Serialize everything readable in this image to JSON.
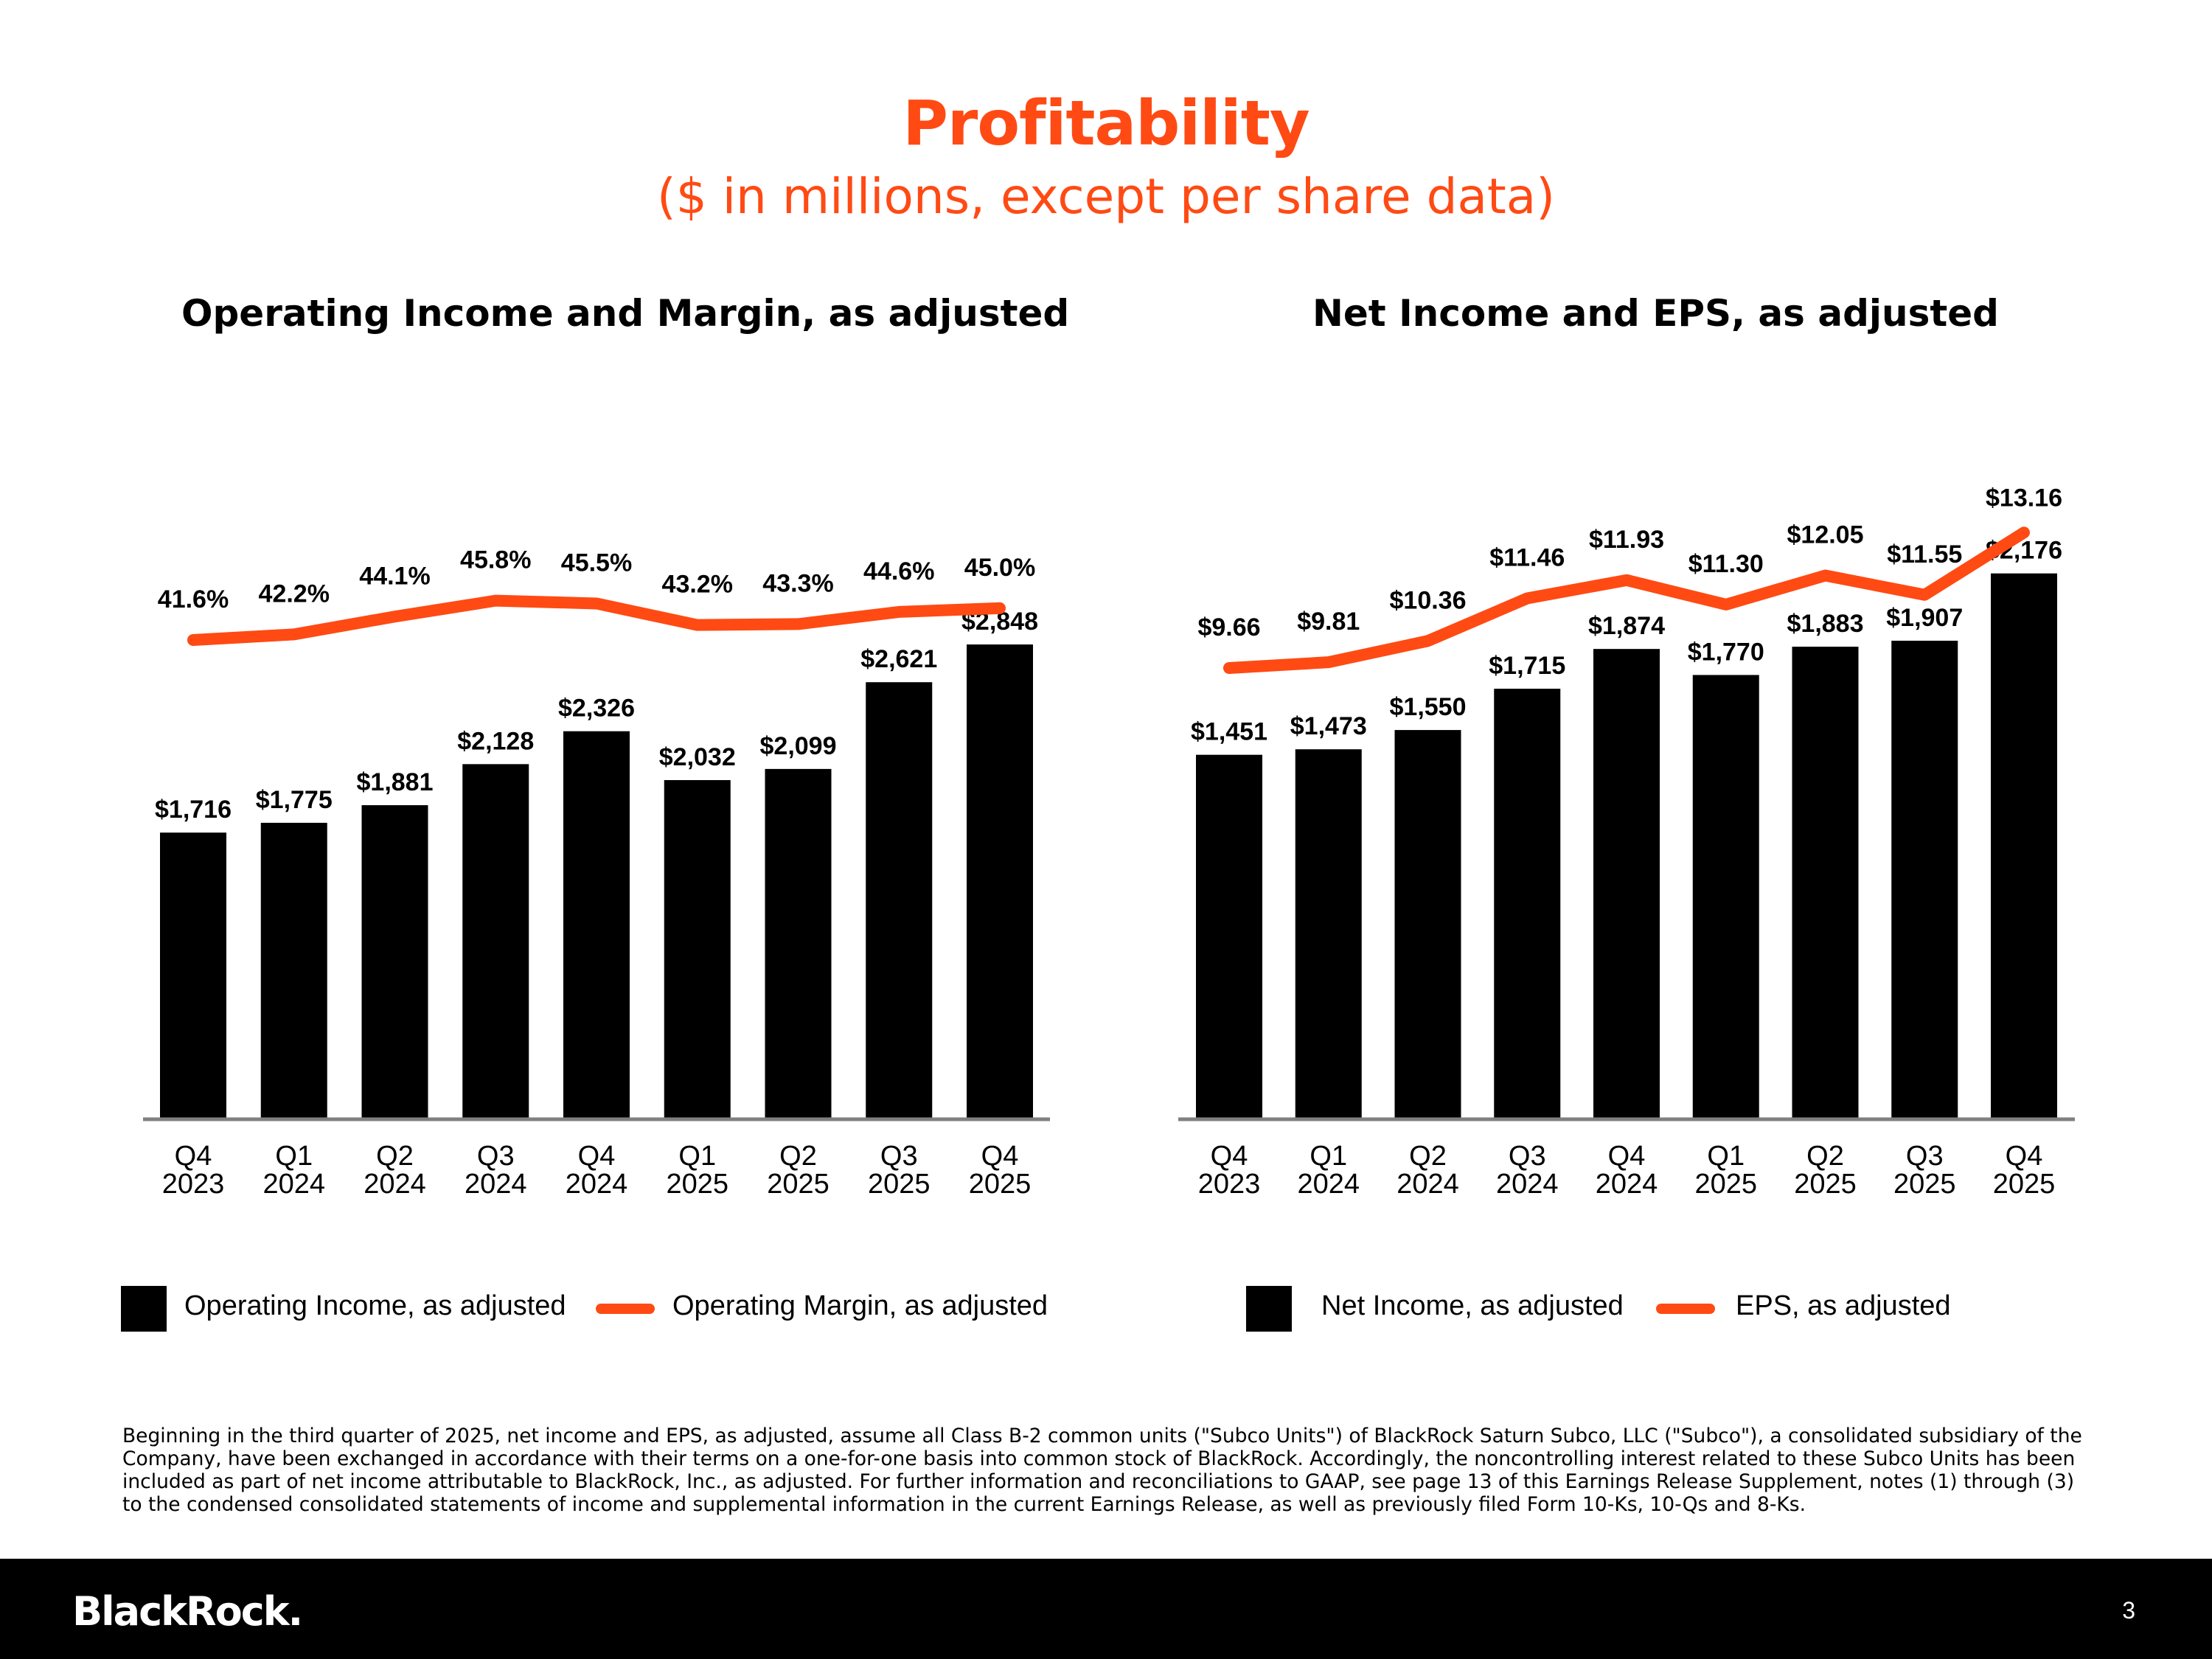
{
  "header": {
    "title": "Profitability",
    "subtitle": "($ in millions, except per share data)"
  },
  "chart_data": [
    {
      "type": "bar",
      "title": "Operating Income and Margin, as adjusted",
      "categories": [
        [
          "Q4",
          "2023"
        ],
        [
          "Q1",
          "2024"
        ],
        [
          "Q2",
          "2024"
        ],
        [
          "Q3",
          "2024"
        ],
        [
          "Q4",
          "2024"
        ],
        [
          "Q1",
          "2025"
        ],
        [
          "Q2",
          "2025"
        ],
        [
          "Q3",
          "2025"
        ],
        [
          "Q4",
          "2025"
        ]
      ],
      "series": [
        {
          "name": "Operating Income, as adjusted",
          "kind": "bar",
          "values": [
            1716,
            1775,
            1881,
            2128,
            2326,
            2032,
            2099,
            2621,
            2848
          ],
          "labels": [
            "$1,716",
            "$1,775",
            "$1,881",
            "$2,128",
            "$2,326",
            "$2,032",
            "$2,099",
            "$2,621",
            "$2,848"
          ]
        },
        {
          "name": "Operating Margin, as adjusted",
          "kind": "line",
          "values": [
            41.6,
            42.2,
            44.1,
            45.8,
            45.5,
            43.2,
            43.3,
            44.6,
            45.0
          ],
          "labels": [
            "41.6%",
            "42.2%",
            "44.1%",
            "45.8%",
            "45.5%",
            "43.2%",
            "43.3%",
            "44.6%",
            "45.0%"
          ]
        }
      ],
      "xlabel": "",
      "ylabel": "",
      "grid": false
    },
    {
      "type": "bar",
      "title": "Net Income and EPS, as adjusted",
      "categories": [
        [
          "Q4",
          "2023"
        ],
        [
          "Q1",
          "2024"
        ],
        [
          "Q2",
          "2024"
        ],
        [
          "Q3",
          "2024"
        ],
        [
          "Q4",
          "2024"
        ],
        [
          "Q1",
          "2025"
        ],
        [
          "Q2",
          "2025"
        ],
        [
          "Q3",
          "2025"
        ],
        [
          "Q4",
          "2025"
        ]
      ],
      "series": [
        {
          "name": "Net Income, as adjusted",
          "kind": "bar",
          "values": [
            1451,
            1473,
            1550,
            1715,
            1874,
            1770,
            1883,
            1907,
            2176
          ],
          "labels": [
            "$1,451",
            "$1,473",
            "$1,550",
            "$1,715",
            "$1,874",
            "$1,770",
            "$1,883",
            "$1,907",
            "$2,176"
          ]
        },
        {
          "name": "EPS, as adjusted",
          "kind": "line",
          "values": [
            9.66,
            9.81,
            10.36,
            11.46,
            11.93,
            11.3,
            12.05,
            11.55,
            13.16
          ],
          "labels": [
            "$9.66",
            "$9.81",
            "$10.36",
            "$11.46",
            "$11.93",
            "$11.30",
            "$12.05",
            "$11.55",
            "$13.16"
          ]
        }
      ],
      "xlabel": "",
      "ylabel": "",
      "grid": false
    }
  ],
  "colors": {
    "accent": "#ff4a14",
    "bar": "#000000",
    "axis": "#808080"
  },
  "footnote": "Beginning in the third quarter of 2025, net income and EPS, as adjusted, assume all Class B-2 common units (\"Subco Units\") of BlackRock Saturn Subco, LLC (\"Subco\"), a consolidated subsidiary of the Company, have been exchanged in accordance with their terms on a one-for-one basis into common stock of BlackRock. Accordingly, the noncontrolling interest related to these Subco Units has been included as part of net income attributable to BlackRock, Inc., as adjusted. For further information and reconciliations to GAAP, see page 13 of this Earnings Release Supplement, notes (1) through (3) to the condensed consolidated statements of income and supplemental information in the current Earnings Release, as well as previously filed Form 10-Ks, 10-Qs and 8-Ks.",
  "footer": {
    "logo": "BlackRock.",
    "page_number": "3"
  }
}
